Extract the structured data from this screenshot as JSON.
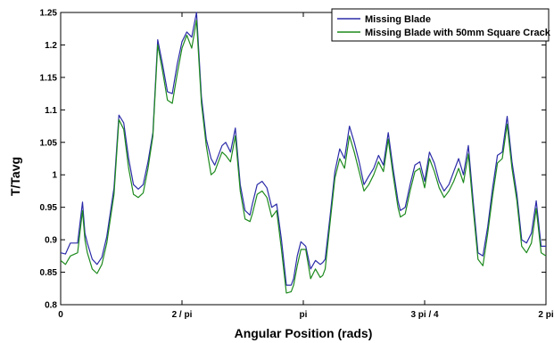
{
  "chart_data": {
    "type": "line",
    "title": "",
    "xlabel": "Angular Position (rads)",
    "ylabel": "T/Tavg",
    "xlim": [
      0,
      4
    ],
    "ylim": [
      0.8,
      1.25
    ],
    "grid": false,
    "legend_placement": "top-right",
    "xticks": [
      {
        "value": 0,
        "label": "0"
      },
      {
        "value": 1,
        "label": "2 / pi"
      },
      {
        "value": 2,
        "label": "pi"
      },
      {
        "value": 3,
        "label": "3 pi / 4"
      },
      {
        "value": 4,
        "label": "2 pi"
      }
    ],
    "yticks": [
      0.8,
      0.85,
      0.9,
      0.95,
      1,
      1.05,
      1.1,
      1.15,
      1.2,
      1.25
    ],
    "series": [
      {
        "name": "Missing Blade",
        "color": "#2b2ba8",
        "x": [
          0,
          0.04,
          0.08,
          0.14,
          0.18,
          0.2,
          0.22,
          0.26,
          0.3,
          0.34,
          0.38,
          0.44,
          0.48,
          0.52,
          0.56,
          0.6,
          0.64,
          0.68,
          0.72,
          0.76,
          0.8,
          0.84,
          0.88,
          0.92,
          0.96,
          1.0,
          1.04,
          1.08,
          1.12,
          1.16,
          1.2,
          1.24,
          1.27,
          1.3,
          1.33,
          1.36,
          1.4,
          1.44,
          1.48,
          1.52,
          1.56,
          1.58,
          1.62,
          1.66,
          1.7,
          1.74,
          1.78,
          1.82,
          1.86,
          1.9,
          1.92,
          1.95,
          1.98,
          2.02,
          2.06,
          2.1,
          2.14,
          2.16,
          2.18,
          2.22,
          2.26,
          2.3,
          2.34,
          2.38,
          2.42,
          2.46,
          2.5,
          2.54,
          2.58,
          2.62,
          2.66,
          2.7,
          2.74,
          2.78,
          2.8,
          2.84,
          2.88,
          2.92,
          2.96,
          3.0,
          3.04,
          3.08,
          3.12,
          3.16,
          3.2,
          3.24,
          3.28,
          3.32,
          3.36,
          3.4,
          3.44,
          3.48,
          3.52,
          3.56,
          3.6,
          3.64,
          3.68,
          3.72,
          3.76,
          3.8,
          3.84,
          3.88,
          3.92,
          3.96,
          4.0
        ],
        "y": [
          0.88,
          0.878,
          0.895,
          0.895,
          0.958,
          0.91,
          0.895,
          0.87,
          0.862,
          0.873,
          0.905,
          0.98,
          1.092,
          1.08,
          1.025,
          0.985,
          0.978,
          0.985,
          1.02,
          1.065,
          1.208,
          1.17,
          1.128,
          1.125,
          1.17,
          1.205,
          1.22,
          1.212,
          1.25,
          1.12,
          1.055,
          1.025,
          1.015,
          1.03,
          1.045,
          1.05,
          1.035,
          1.072,
          0.985,
          0.945,
          0.938,
          0.955,
          0.985,
          0.99,
          0.98,
          0.95,
          0.955,
          0.9,
          0.83,
          0.83,
          0.84,
          0.875,
          0.897,
          0.89,
          0.855,
          0.868,
          0.862,
          0.865,
          0.87,
          0.935,
          1.005,
          1.04,
          1.025,
          1.075,
          1.05,
          1.02,
          0.985,
          0.998,
          1.01,
          1.03,
          1.015,
          1.065,
          1.01,
          0.96,
          0.945,
          0.95,
          0.985,
          1.015,
          1.02,
          0.99,
          1.035,
          1.018,
          0.99,
          0.975,
          0.985,
          1.005,
          1.025,
          1.0,
          1.045,
          0.96,
          0.88,
          0.875,
          0.92,
          0.98,
          1.03,
          1.035,
          1.09,
          1.02,
          0.97,
          0.9,
          0.895,
          0.91,
          0.96,
          0.89,
          0.89
        ]
      },
      {
        "name": "Missing Blade with 50mm Square Crack",
        "color": "#1d8a1d",
        "x": [
          0,
          0.04,
          0.08,
          0.14,
          0.18,
          0.2,
          0.22,
          0.26,
          0.3,
          0.34,
          0.38,
          0.44,
          0.48,
          0.52,
          0.56,
          0.6,
          0.64,
          0.68,
          0.72,
          0.76,
          0.8,
          0.84,
          0.88,
          0.92,
          0.96,
          1.0,
          1.04,
          1.08,
          1.12,
          1.16,
          1.2,
          1.24,
          1.27,
          1.3,
          1.33,
          1.36,
          1.4,
          1.44,
          1.48,
          1.52,
          1.56,
          1.58,
          1.62,
          1.66,
          1.7,
          1.74,
          1.78,
          1.82,
          1.86,
          1.9,
          1.92,
          1.95,
          1.98,
          2.02,
          2.06,
          2.1,
          2.14,
          2.16,
          2.18,
          2.22,
          2.26,
          2.3,
          2.34,
          2.38,
          2.42,
          2.46,
          2.5,
          2.54,
          2.58,
          2.62,
          2.66,
          2.7,
          2.74,
          2.78,
          2.8,
          2.84,
          2.88,
          2.92,
          2.96,
          3.0,
          3.04,
          3.08,
          3.12,
          3.16,
          3.2,
          3.24,
          3.28,
          3.32,
          3.36,
          3.4,
          3.44,
          3.48,
          3.52,
          3.56,
          3.6,
          3.64,
          3.68,
          3.72,
          3.76,
          3.8,
          3.84,
          3.88,
          3.92,
          3.96,
          4.0
        ],
        "y": [
          0.868,
          0.862,
          0.875,
          0.88,
          0.945,
          0.9,
          0.88,
          0.855,
          0.848,
          0.862,
          0.895,
          0.97,
          1.085,
          1.07,
          1.01,
          0.97,
          0.965,
          0.972,
          1.01,
          1.06,
          1.2,
          1.16,
          1.115,
          1.11,
          1.155,
          1.195,
          1.215,
          1.195,
          1.238,
          1.11,
          1.045,
          1.0,
          1.005,
          1.02,
          1.035,
          1.03,
          1.02,
          1.06,
          0.975,
          0.932,
          0.928,
          0.94,
          0.97,
          0.975,
          0.965,
          0.935,
          0.945,
          0.885,
          0.818,
          0.82,
          0.83,
          0.86,
          0.885,
          0.885,
          0.84,
          0.855,
          0.842,
          0.845,
          0.855,
          0.925,
          0.995,
          1.025,
          1.01,
          1.06,
          1.035,
          1.005,
          0.975,
          0.985,
          1.0,
          1.02,
          1.005,
          1.055,
          1.0,
          0.95,
          0.935,
          0.94,
          0.975,
          1.005,
          1.01,
          0.98,
          1.025,
          1.005,
          0.98,
          0.965,
          0.975,
          0.99,
          1.01,
          0.988,
          1.032,
          0.948,
          0.87,
          0.86,
          0.91,
          0.968,
          1.018,
          1.025,
          1.078,
          1.01,
          0.96,
          0.89,
          0.88,
          0.895,
          0.948,
          0.88,
          0.875
        ]
      }
    ]
  }
}
